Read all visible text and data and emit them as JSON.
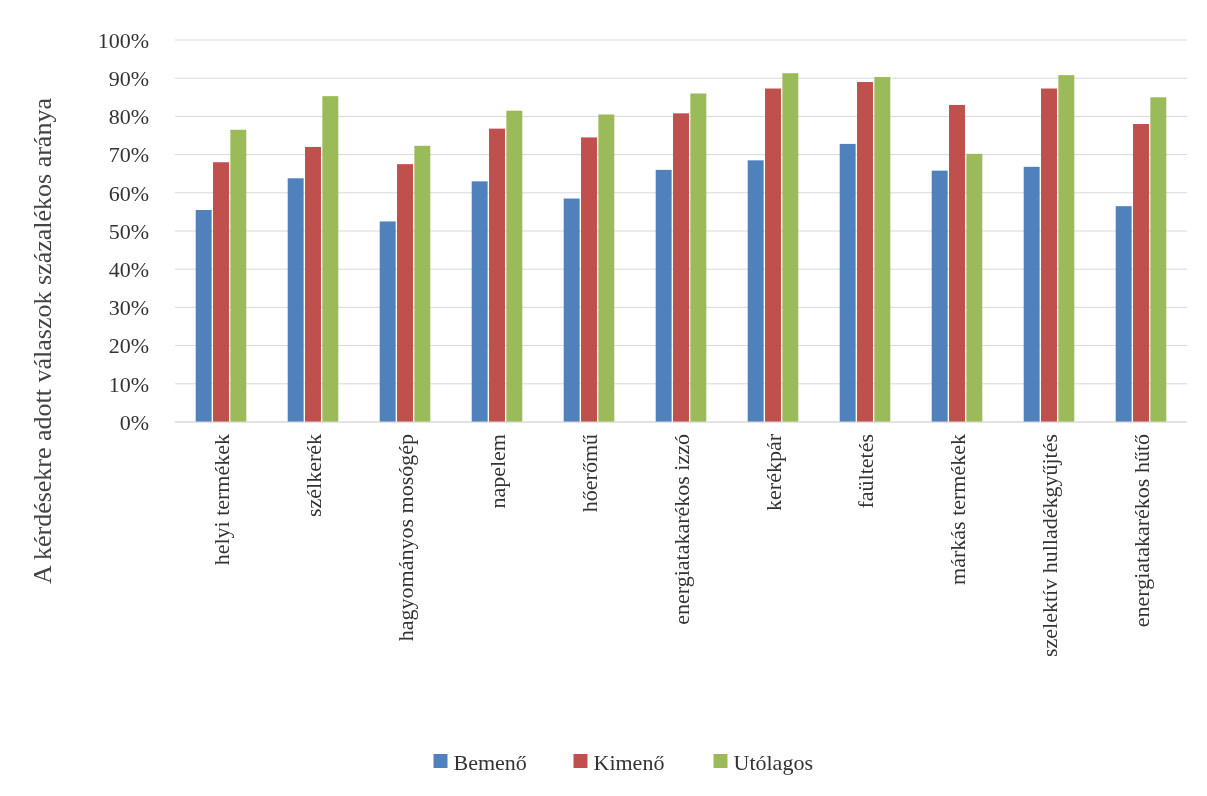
{
  "chart_data": {
    "type": "bar",
    "ylabel": "A kérdésekre adott válaszok százalékos aránya",
    "categories": [
      "helyi termékek",
      "szélkerék",
      "hagyományos mosógép",
      "napelem",
      "hőerőmű",
      "energiatakarékos izzó",
      "kerékpár",
      "faültetés",
      "márkás termékek",
      "szelektív hulladékgyűjtés",
      "energiatakarékos hűtő"
    ],
    "series": [
      {
        "name": "Bemenő",
        "color": "#4f81bd",
        "values": [
          55.5,
          63.8,
          52.5,
          63,
          58.5,
          66,
          68.5,
          72.8,
          65.8,
          66.8,
          56.5
        ]
      },
      {
        "name": "Kimenő",
        "color": "#c0504d",
        "values": [
          68,
          72,
          67.5,
          76.8,
          74.5,
          80.8,
          87.3,
          89,
          83,
          87.3,
          78
        ]
      },
      {
        "name": "Utólagos",
        "color": "#9bbb59",
        "values": [
          76.5,
          85.3,
          72.3,
          81.5,
          80.5,
          86,
          91.3,
          90.3,
          70.2,
          90.8,
          85
        ]
      }
    ],
    "ylim": [
      0,
      100
    ],
    "yticks": [
      {
        "value": 0,
        "label": "0%"
      },
      {
        "value": 10,
        "label": "10%"
      },
      {
        "value": 20,
        "label": "20%"
      },
      {
        "value": 30,
        "label": "30%"
      },
      {
        "value": 40,
        "label": "40%"
      },
      {
        "value": 50,
        "label": "50%"
      },
      {
        "value": 60,
        "label": "60%"
      },
      {
        "value": 70,
        "label": "70%"
      },
      {
        "value": 80,
        "label": "80%"
      },
      {
        "value": 90,
        "label": "90%"
      },
      {
        "value": 100,
        "label": "100%"
      }
    ],
    "grid": "y",
    "legend": "bottom"
  }
}
